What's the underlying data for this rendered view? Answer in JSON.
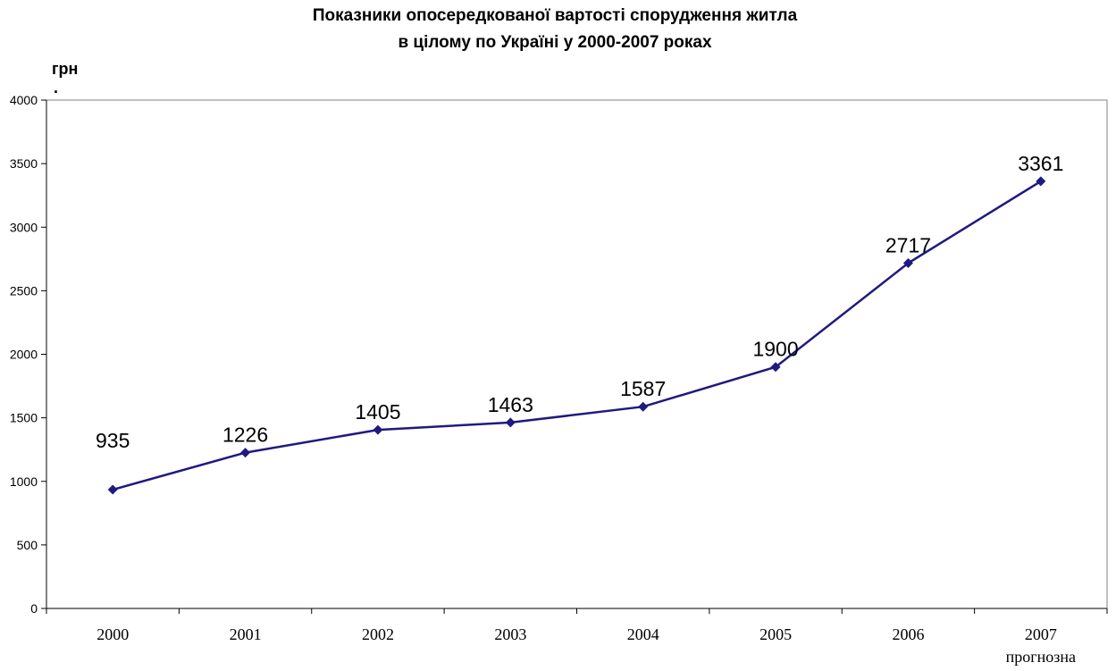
{
  "chart_data": {
    "type": "line",
    "title": [
      "Показники опосередкованої вартості спорудження житла",
      "в цілому по Україні у 2000-2007 роках"
    ],
    "ylabel": [
      "грн",
      "."
    ],
    "xlabel": "",
    "categories": [
      "2000",
      "2001",
      "2002",
      "2003",
      "2004",
      "2005",
      "2006",
      "2007"
    ],
    "category_note": "прогнозна",
    "series": [
      {
        "values": [
          935,
          1226,
          1405,
          1463,
          1587,
          1900,
          2717,
          3361
        ],
        "color": "#1f1a80"
      }
    ],
    "ylim": [
      0,
      4000
    ],
    "yticks": [
      "0",
      "500",
      "1000",
      "1500",
      "2000",
      "2500",
      "3000",
      "3500",
      "4000"
    ],
    "grid": false,
    "legend": "none"
  }
}
